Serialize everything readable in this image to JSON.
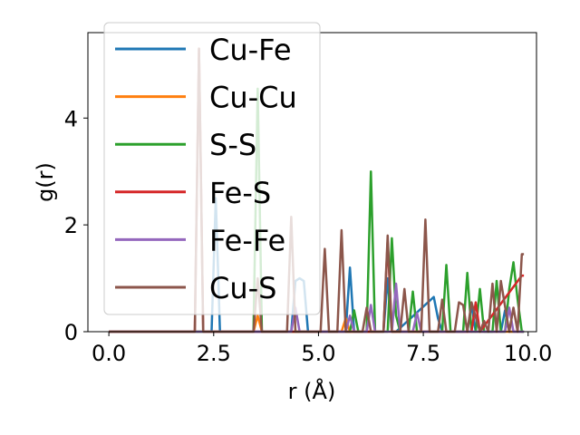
{
  "chart_data": {
    "type": "line",
    "xlabel": "r (Å)",
    "ylabel": "g(r)",
    "xlim": [
      -0.5,
      10.2
    ],
    "ylim": [
      0,
      5.6
    ],
    "xticks": [
      0.0,
      2.5,
      5.0,
      7.5,
      10.0
    ],
    "xtick_labels": [
      "0.0",
      "2.5",
      "5.0",
      "7.5",
      "10.0"
    ],
    "yticks": [
      0,
      2,
      4
    ],
    "ytick_labels": [
      "0",
      "2",
      "4"
    ],
    "grid": false,
    "legend_position": "top-left",
    "series": [
      {
        "name": "Cu-Fe",
        "color": "#1f77b4",
        "x": [
          0,
          2.45,
          2.55,
          2.65,
          2.75,
          4.35,
          4.45,
          4.55,
          4.65,
          4.75,
          5.65,
          5.75,
          5.85,
          6.55,
          6.65,
          6.75,
          6.85,
          7.75,
          7.85,
          7.95,
          8.55,
          8.65,
          8.75,
          9.35,
          9.45,
          9.55,
          9.9
        ],
        "y": [
          0,
          0,
          2.5,
          0,
          0,
          0,
          0.95,
          1.0,
          0.95,
          0,
          0,
          1.2,
          0,
          0,
          1.0,
          0,
          0,
          0.65,
          0.25,
          0,
          0,
          0.5,
          0,
          0,
          0.4,
          0,
          0
        ]
      },
      {
        "name": "Cu-Cu",
        "color": "#ff7f0e",
        "x": [
          0,
          3.45,
          3.55,
          3.65,
          5.55,
          5.65,
          5.75,
          9.9
        ],
        "y": [
          0,
          0,
          0.3,
          0,
          0,
          0.25,
          0,
          0
        ]
      },
      {
        "name": "S-S",
        "color": "#2ca02c",
        "x": [
          0,
          3.45,
          3.55,
          3.65,
          5.75,
          5.85,
          5.95,
          6.15,
          6.25,
          6.35,
          6.65,
          6.75,
          6.85,
          6.95,
          7.15,
          7.25,
          7.35,
          7.95,
          8.05,
          8.15,
          8.45,
          8.55,
          8.65,
          8.75,
          8.85,
          8.95,
          9.15,
          9.25,
          9.35,
          9.45,
          9.55,
          9.65,
          9.75,
          9.85,
          9.9
        ],
        "y": [
          0,
          0,
          4.55,
          0,
          0,
          0.4,
          0,
          0,
          3.0,
          0,
          0,
          1.75,
          0.3,
          0,
          0,
          0.75,
          0,
          0,
          1.25,
          0,
          0,
          1.1,
          0,
          0,
          0.8,
          0,
          0,
          0.95,
          0,
          0,
          0.8,
          1.3,
          0.6,
          0,
          0
        ]
      },
      {
        "name": "Fe-S",
        "color": "#d62728",
        "x": [
          0,
          2.05,
          2.15,
          2.25,
          6.55,
          6.65,
          6.75,
          8.65,
          8.75,
          8.85,
          9.85,
          9.9
        ],
        "y": [
          0,
          0,
          5.3,
          0,
          0,
          1.7,
          0,
          0,
          0.55,
          0,
          1.05,
          1.05
        ]
      },
      {
        "name": "Fe-Fe",
        "color": "#9467bd",
        "x": [
          0,
          4.35,
          4.45,
          4.55,
          5.65,
          5.75,
          5.85,
          6.15,
          6.25,
          6.35,
          6.75,
          6.85,
          6.95,
          7.25,
          7.35,
          7.45,
          9.45,
          9.55,
          9.65,
          9.9
        ],
        "y": [
          0,
          0,
          0.45,
          0,
          0,
          0.3,
          0,
          0,
          0.5,
          0,
          0,
          0.9,
          0,
          0,
          0.35,
          0,
          0,
          0.45,
          0,
          0
        ]
      },
      {
        "name": "Cu-S",
        "color": "#8c564b",
        "x": [
          0,
          2.05,
          2.15,
          2.25,
          3.45,
          3.55,
          3.65,
          4.25,
          4.35,
          4.45,
          5.05,
          5.15,
          5.25,
          5.45,
          5.55,
          5.65,
          6.05,
          6.15,
          6.25,
          6.55,
          6.65,
          6.75,
          6.95,
          7.05,
          7.15,
          7.45,
          7.55,
          7.65,
          7.85,
          7.95,
          8.05,
          8.25,
          8.35,
          8.45,
          8.55,
          8.65,
          8.85,
          8.95,
          9.05,
          9.15,
          9.25,
          9.35,
          9.55,
          9.65,
          9.75,
          9.85,
          9.9
        ],
        "y": [
          0,
          0,
          5.3,
          0,
          0,
          1.0,
          0,
          0,
          2.15,
          0,
          0,
          1.55,
          0,
          0,
          1.9,
          0,
          0,
          0.45,
          0,
          0,
          1.8,
          0,
          0,
          0.8,
          0,
          0,
          2.1,
          0,
          0,
          0.6,
          0,
          0,
          0.55,
          0.5,
          0,
          0.55,
          0,
          0.2,
          0,
          0.9,
          0,
          0.95,
          0,
          0.45,
          0,
          1.45,
          1.45
        ]
      }
    ]
  }
}
